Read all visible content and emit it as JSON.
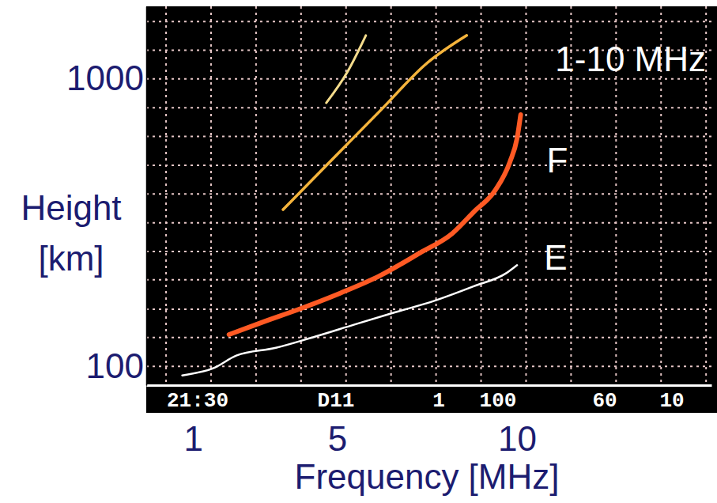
{
  "chart_data": {
    "type": "line",
    "x_label": "Frequency [MHz]",
    "y_label": "Height [km]",
    "xlim": [
      -0.3,
      15.4
    ],
    "ylim": [
      86,
      1790
    ],
    "xticks": [
      1,
      5,
      10
    ],
    "yticks": [
      100,
      1000
    ],
    "log": "y",
    "grid": true,
    "xgrid": [
      0.25,
      1.5,
      2.75,
      4,
      5.25,
      6.5,
      7.75,
      9,
      10.25,
      11.5,
      12.75,
      14,
      15.25
    ],
    "ygrid": [
      100,
      126,
      158,
      200,
      251,
      316,
      398,
      501,
      631,
      794,
      1000,
      1259,
      1585
    ],
    "marker": "none",
    "line_style": "solid",
    "series": [
      {
        "name": "F",
        "color": "#ff5a24",
        "x": [
          2.0,
          2.9,
          4.0,
          5.1,
          6.2,
          7.3,
          8.2,
          8.8,
          9.4,
          9.8,
          10.0,
          10.1
        ],
        "values": [
          129,
          142,
          159,
          180,
          207,
          248,
          290,
          345,
          411,
          514,
          621,
          751
        ]
      },
      {
        "name": "E",
        "color": "#ffffff",
        "x": [
          0.7,
          1.6,
          2.2,
          3.3,
          4.4,
          5.5,
          6.6,
          7.7,
          8.8,
          9.7,
          10.0
        ],
        "values": [
          93,
          99,
          109,
          116,
          127,
          140,
          154,
          169,
          190,
          211,
          225
        ]
      },
      {
        "color": "#f5b43c",
        "x": [
          3.5,
          4.9,
          6.2,
          7.5,
          8.6
        ],
        "values": [
          351,
          530,
          776,
          1136,
          1418
        ]
      },
      {
        "color": "#f5dc8c",
        "x": [
          4.7,
          5.3,
          5.8
        ],
        "values": [
          826,
          1065,
          1418
        ]
      }
    ],
    "annotations": [
      {
        "text": "1-10 MHz"
      }
    ],
    "status_bar": [
      "21:30",
      "D11",
      "1",
      "100",
      "60",
      "10"
    ]
  }
}
